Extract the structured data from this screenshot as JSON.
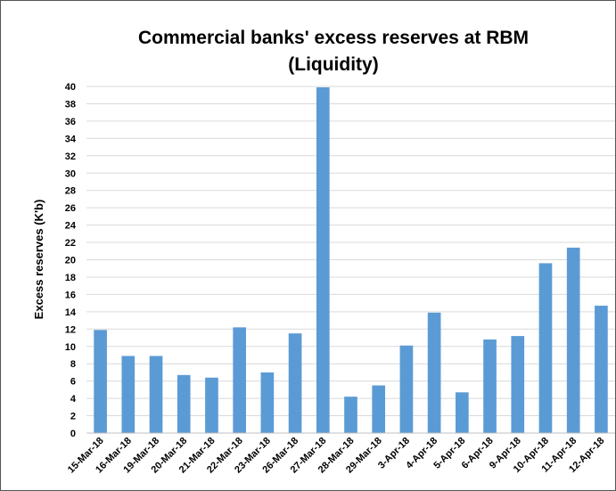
{
  "chart_data": {
    "type": "bar",
    "title_line1": "Commercial banks' excess reserves at RBM",
    "title_line2": "(Liquidity)",
    "xlabel": "",
    "ylabel": "Excess reserves (K'b)",
    "ylim": [
      0,
      40
    ],
    "ytick_step": 2,
    "grid": true,
    "legend": "none",
    "bar_color": "#5b9bd5",
    "categories": [
      "15-Mar-18",
      "16-Mar-18",
      "19-Mar-18",
      "20-Mar-18",
      "21-Mar-18",
      "22-Mar-18",
      "23-Mar-18",
      "26-Mar-18",
      "27-Mar-18",
      "28-Mar-18",
      "29-Mar-18",
      "3-Apr-18",
      "4-Apr-18",
      "5-Apr-18",
      "6-Apr-18",
      "9-Apr-18",
      "10-Apr-18",
      "11-Apr-18",
      "12-Apr-18"
    ],
    "values": [
      11.9,
      8.9,
      8.9,
      6.7,
      6.4,
      12.2,
      7.0,
      11.5,
      39.9,
      4.2,
      5.5,
      10.1,
      13.9,
      4.7,
      10.8,
      11.2,
      19.6,
      21.4,
      14.7
    ]
  }
}
